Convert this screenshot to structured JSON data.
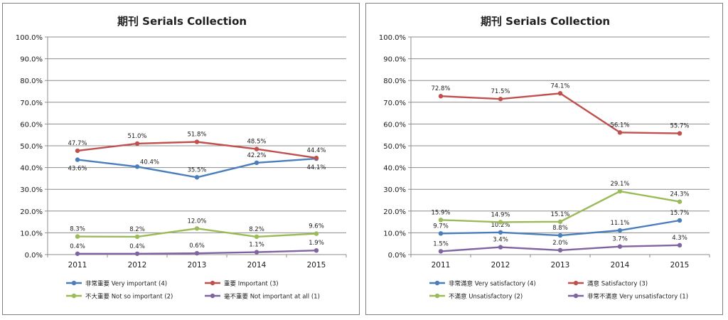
{
  "charts": [
    {
      "title": "期刊  Serials Collection",
      "chart_data": {
        "type": "line",
        "title": "期刊  Serials Collection",
        "x": [
          "2011",
          "2012",
          "2013",
          "2014",
          "2015"
        ],
        "ylim": [
          0,
          100
        ],
        "y_tick_labels": [
          "0.0%",
          "10.0%",
          "20.0%",
          "30.0%",
          "40.0%",
          "50.0%",
          "60.0%",
          "70.0%",
          "80.0%",
          "90.0%",
          "100.0%"
        ],
        "grid": true,
        "legend_position": "bottom",
        "series": [
          {
            "name": "非常重要 Very important (4)",
            "color": "#4a7ebb",
            "values": [
              43.6,
              40.4,
              35.5,
              42.2,
              44.1
            ],
            "labels": [
              "43.6%",
              "40.4%",
              "35.5%",
              "42.2%",
              "44.1%"
            ],
            "label_pos": [
              "below",
              "right",
              "above",
              "above",
              "below"
            ]
          },
          {
            "name": "重要 Important (3)",
            "color": "#c0504d",
            "values": [
              47.7,
              51.0,
              51.8,
              48.5,
              44.4
            ],
            "labels": [
              "47.7%",
              "51.0%",
              "51.8%",
              "48.5%",
              "44.4%"
            ],
            "label_pos": [
              "above",
              "above",
              "above",
              "above",
              "above"
            ]
          },
          {
            "name": "不大重要 Not so important (2)",
            "color": "#9bbb59",
            "values": [
              8.3,
              8.2,
              12.0,
              8.2,
              9.6
            ],
            "labels": [
              "8.3%",
              "8.2%",
              "12.0%",
              "8.2%",
              "9.6%"
            ],
            "label_pos": [
              "above",
              "above",
              "above",
              "above",
              "above"
            ]
          },
          {
            "name": "毫不重要 Not important at all (1)",
            "color": "#8064a2",
            "values": [
              0.4,
              0.4,
              0.6,
              1.1,
              1.9
            ],
            "labels": [
              "0.4%",
              "0.4%",
              "0.6%",
              "1.1%",
              "1.9%"
            ],
            "label_pos": [
              "above",
              "above",
              "above",
              "above",
              "above"
            ]
          }
        ]
      }
    },
    {
      "title": "期刊  Serials Collection",
      "chart_data": {
        "type": "line",
        "title": "期刊  Serials Collection",
        "x": [
          "2011",
          "2012",
          "2013",
          "2014",
          "2015"
        ],
        "ylim": [
          0,
          100
        ],
        "y_tick_labels": [
          "0.0%",
          "10.0%",
          "20.0%",
          "30.0%",
          "40.0%",
          "50.0%",
          "60.0%",
          "70.0%",
          "80.0%",
          "90.0%",
          "100.0%"
        ],
        "grid": true,
        "legend_position": "bottom",
        "series": [
          {
            "name": "非常滿意 Very satisfactory (4)",
            "color": "#4a7ebb",
            "values": [
              9.7,
              10.2,
              8.8,
              11.1,
              15.7
            ],
            "labels": [
              "9.7%",
              "10.2%",
              "8.8%",
              "11.1%",
              "15.7%"
            ],
            "label_pos": [
              "above",
              "above",
              "above",
              "above",
              "above"
            ]
          },
          {
            "name": "滿意 Satisfactory (3)",
            "color": "#c0504d",
            "values": [
              72.8,
              71.5,
              74.1,
              56.1,
              55.7
            ],
            "labels": [
              "72.8%",
              "71.5%",
              "74.1%",
              "56.1%",
              "55.7%"
            ],
            "label_pos": [
              "above",
              "above",
              "above",
              "above",
              "above"
            ]
          },
          {
            "name": "不滿意  Unsatisfactory (2)",
            "color": "#9bbb59",
            "values": [
              15.9,
              14.9,
              15.1,
              29.1,
              24.3
            ],
            "labels": [
              "15.9%",
              "14.9%",
              "15.1%",
              "29.1%",
              "24.3%"
            ],
            "label_pos": [
              "above",
              "above",
              "above",
              "above",
              "above"
            ]
          },
          {
            "name": "非常不滿意  Very unsatisfactory (1)",
            "color": "#8064a2",
            "values": [
              1.5,
              3.4,
              2.0,
              3.7,
              4.3
            ],
            "labels": [
              "1.5%",
              "3.4%",
              "2.0%",
              "3.7%",
              "4.3%"
            ],
            "label_pos": [
              "above",
              "above",
              "above",
              "above",
              "above"
            ]
          }
        ]
      }
    }
  ]
}
